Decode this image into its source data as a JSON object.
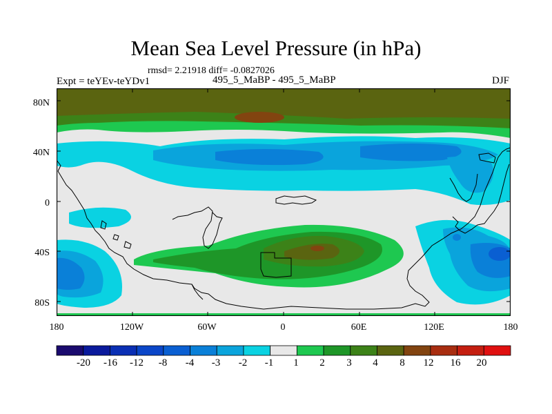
{
  "header": {
    "title": "Mean Sea Level Pressure (in hPa)",
    "stats": "rmsd= 2.21918 diff= -0.0827026",
    "experiment": "Expt = teYEv-teYDv1",
    "comparison": "495_5_MaBP - 495_5_MaBP",
    "season": "DJF"
  },
  "axes": {
    "lat_labels": [
      "80N",
      "40N",
      "0",
      "40S",
      "80S"
    ],
    "lon_labels": [
      "180",
      "120W",
      "60W",
      "0",
      "60E",
      "120E",
      "180"
    ]
  },
  "colorbar": {
    "labels": [
      "-20",
      "-16",
      "-12",
      "-8",
      "-4",
      "-3",
      "-2",
      "-1",
      "1",
      "2",
      "3",
      "4",
      "8",
      "12",
      "16",
      "20"
    ],
    "colors": [
      "#1a0a6e",
      "#0a1a9c",
      "#0a2fb4",
      "#0a46c8",
      "#0a5fd2",
      "#0a80d8",
      "#0aa4dc",
      "#0ad2e2",
      "#e8e8e8",
      "#1ec850",
      "#1e9628",
      "#3c8218",
      "#5a6410",
      "#824410",
      "#a82d10",
      "#c41e10",
      "#e01010"
    ]
  },
  "palette": {
    "ocean_neutral": "#e8e8e8",
    "coastline": "#000000"
  }
}
